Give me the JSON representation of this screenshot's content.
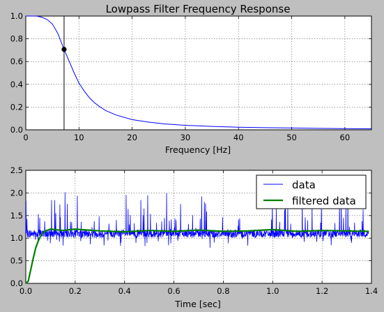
{
  "chart_data": [
    {
      "type": "line",
      "title": "Lowpass Filter Frequency Response",
      "xlabel": "Frequency [Hz]",
      "ylabel": "",
      "xlim": [
        0,
        65
      ],
      "ylim": [
        0,
        1.0
      ],
      "xticks": [
        "0",
        "10",
        "20",
        "30",
        "40",
        "50",
        "60"
      ],
      "yticks": [
        "0.0",
        "0.2",
        "0.4",
        "0.6",
        "0.8",
        "1.0"
      ],
      "grid": true,
      "series": [
        {
          "color": "#0000ff",
          "x": [
            0,
            1,
            2,
            3,
            4,
            5,
            6,
            7,
            7.2,
            8,
            9,
            10,
            11,
            12,
            13,
            14,
            15,
            17,
            20,
            23,
            26,
            30,
            35,
            40,
            45,
            50,
            55,
            60,
            65
          ],
          "y": [
            1.0,
            1.0,
            1.0,
            0.99,
            0.97,
            0.93,
            0.85,
            0.73,
            0.707,
            0.62,
            0.51,
            0.41,
            0.34,
            0.28,
            0.235,
            0.2,
            0.17,
            0.13,
            0.09,
            0.068,
            0.052,
            0.04,
            0.03,
            0.023,
            0.019,
            0.016,
            0.013,
            0.011,
            0.009
          ]
        }
      ],
      "cutoff_point": {
        "x": 7.2,
        "y": 0.707
      },
      "vline_x": 7.2
    },
    {
      "type": "line",
      "title": "",
      "xlabel": "Time [sec]",
      "ylabel": "",
      "xlim": [
        0,
        1.4
      ],
      "ylim": [
        0,
        2.5
      ],
      "xticks": [
        "0.0",
        "0.2",
        "0.4",
        "0.6",
        "0.8",
        "1.0",
        "1.2",
        "1.4"
      ],
      "yticks": [
        "0.0",
        "0.5",
        "1.0",
        "1.5",
        "2.0",
        "2.5"
      ],
      "grid": true,
      "legend_position": "top-right",
      "series": [
        {
          "name": "data",
          "color": "#0000ff",
          "description": "noisy signal around 1.1 with frequent spikes up to about 2.0",
          "x_range": [
            0,
            1.39
          ],
          "baseline": 1.1
        },
        {
          "name": "filtered data",
          "color": "#008000",
          "x": [
            0,
            0.01,
            0.02,
            0.03,
            0.04,
            0.05,
            0.06,
            0.07,
            0.08,
            0.1,
            0.15,
            0.2,
            0.3,
            0.4,
            0.5,
            0.6,
            0.7,
            0.8,
            0.9,
            1.0,
            1.1,
            1.2,
            1.3,
            1.39
          ],
          "y": [
            0,
            0.05,
            0.3,
            0.55,
            0.78,
            0.93,
            1.05,
            1.12,
            1.16,
            1.2,
            1.17,
            1.2,
            1.16,
            1.14,
            1.17,
            1.15,
            1.18,
            1.15,
            1.16,
            1.19,
            1.15,
            1.17,
            1.16,
            1.15
          ]
        }
      ]
    }
  ]
}
